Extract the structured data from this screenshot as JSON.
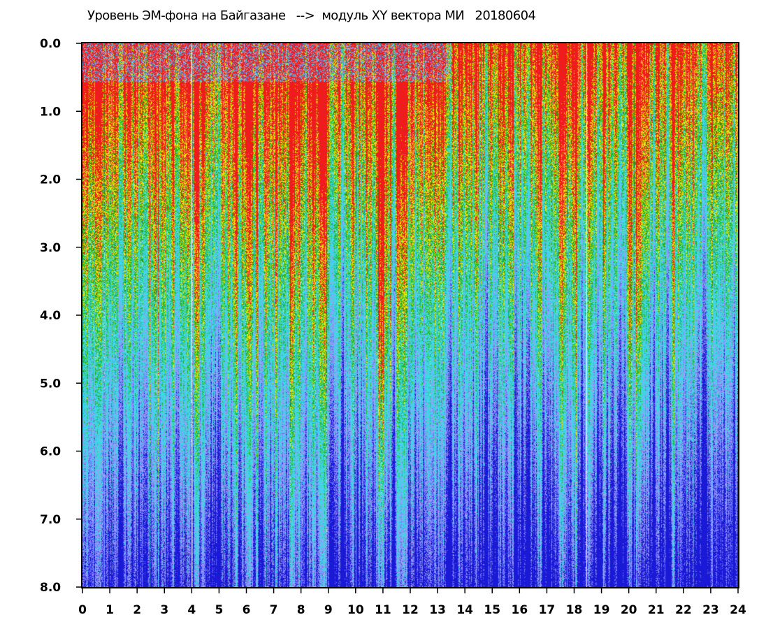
{
  "chart_data": {
    "type": "heatmap",
    "title": "Уровень ЭМ-фона на Байгазане   -->  модуль XY вектора МИ   20180604",
    "xlabel": "",
    "ylabel": "",
    "xlim": [
      0,
      24
    ],
    "ylim": [
      8.0,
      0.0
    ],
    "x_ticks": [
      "0",
      "1",
      "2",
      "3",
      "4",
      "5",
      "6",
      "7",
      "8",
      "9",
      "10",
      "11",
      "12",
      "13",
      "14",
      "15",
      "16",
      "17",
      "18",
      "19",
      "20",
      "21",
      "22",
      "23",
      "24"
    ],
    "y_ticks": [
      "0.0",
      "1.0",
      "2.0",
      "3.0",
      "4.0",
      "5.0",
      "6.0",
      "7.0",
      "8.0"
    ],
    "colorscale": [
      "#1a1ad6",
      "#6e6ef0",
      "#9b9bf5",
      "#3fd6e6",
      "#22b522",
      "#f2e600",
      "#ee1c1c"
    ],
    "background_color": "#3fd6e6",
    "description_regions": [
      {
        "x_range": [
          0,
          13.5
        ],
        "dominant": "cyan-green",
        "upper_band_colors": "red-yellow"
      },
      {
        "x_range": [
          10.8,
          11.3
        ],
        "dominant": "red-yellow",
        "note": "high-intensity column"
      },
      {
        "x_range": [
          13.5,
          24
        ],
        "dominant": "blue-cyan",
        "upper_band_colors": "red-yellow-green"
      },
      {
        "x_range": [
          19.9,
          20.5
        ],
        "dominant": "yellow-red",
        "note": "high-intensity column"
      }
    ],
    "gaps_x": [
      4.0,
      18.45
    ]
  }
}
